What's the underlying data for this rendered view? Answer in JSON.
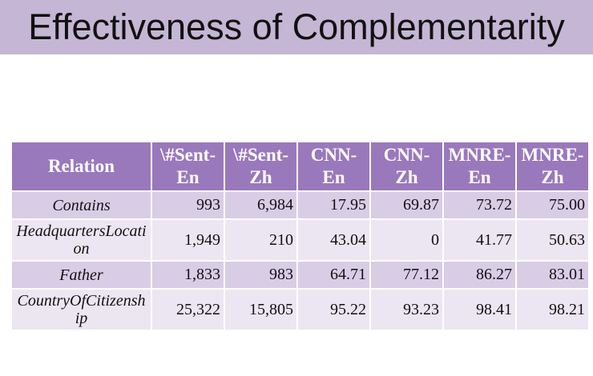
{
  "title": "Effectiveness of Complementarity",
  "table": {
    "headers": [
      "Relation",
      "\\#Sent-En",
      "\\#Sent-Zh",
      "CNN-En",
      "CNN-Zh",
      "MNRE-En",
      "MNRE-Zh"
    ],
    "rows": [
      [
        "Contains",
        "993",
        "6,984",
        "17.95",
        "69.87",
        "73.72",
        "75.00"
      ],
      [
        "HeadquartersLocation",
        "1,949",
        "210",
        "43.04",
        "0",
        "41.77",
        "50.63"
      ],
      [
        "Father",
        "1,833",
        "983",
        "64.71",
        "77.12",
        "86.27",
        "83.01"
      ],
      [
        "CountryOfCitizenship",
        "25,322",
        "15,805",
        "95.22",
        "93.23",
        "98.41",
        "98.21"
      ]
    ]
  },
  "colors": {
    "title_bar": "#c4b6d4",
    "header_bg": "#9a78bc",
    "row_dark": "#d9cde6",
    "row_light": "#ece6f2"
  }
}
